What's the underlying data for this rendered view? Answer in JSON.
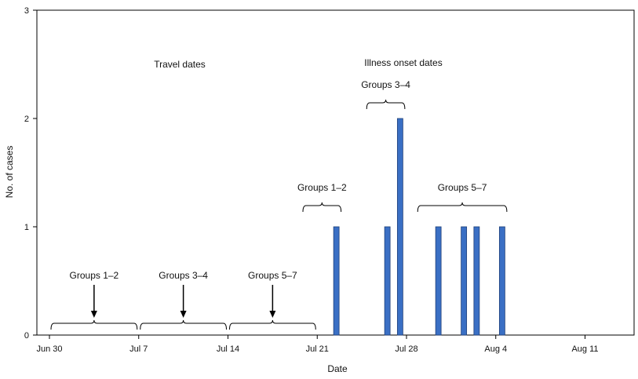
{
  "chart_data": {
    "type": "bar",
    "xlabel": "Date",
    "ylabel": "No. of cases",
    "ylim": [
      0,
      3
    ],
    "y_ticks": [
      "0",
      "1",
      "2",
      "3"
    ],
    "x_ticks": [
      "Jun 30",
      "Jul 7",
      "Jul 14",
      "Jul 21",
      "Jul 28",
      "Aug 4",
      "Aug 11"
    ],
    "x_range": [
      "Jun 30",
      "Aug 16"
    ],
    "bar_color": "#3a6fc4",
    "series": [
      {
        "dates": [
          "Jul 22",
          "Jul 26",
          "Jul 27",
          "Jul 30",
          "Aug 1",
          "Aug 2",
          "Aug 4"
        ],
        "values": [
          1,
          1,
          2,
          1,
          1,
          1,
          1
        ]
      }
    ],
    "section_labels": {
      "travel": "Travel dates",
      "illness": "Illness onset dates"
    },
    "travel_groups": [
      {
        "label": "Groups 1–2",
        "start": "Jun 30",
        "end": "Jul 7"
      },
      {
        "label": "Groups 3–4",
        "start": "Jul 7",
        "end": "Jul 14"
      },
      {
        "label": "Groups 5–7",
        "start": "Jul 14",
        "end": "Jul 21"
      }
    ],
    "illness_groups": [
      {
        "label": "Groups 1–2",
        "start": "Jul 20",
        "end": "Jul 22",
        "level": 1
      },
      {
        "label": "Groups 3–4",
        "start": "Jul 25",
        "end": "Jul 27",
        "level": 2
      },
      {
        "label": "Groups 5–7",
        "start": "Jul 29",
        "end": "Aug 4",
        "level": 1
      }
    ]
  }
}
